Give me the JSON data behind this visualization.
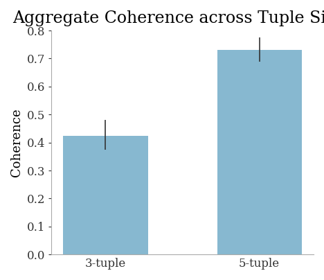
{
  "categories": [
    "3-tuple",
    "5-tuple"
  ],
  "values": [
    0.425,
    0.73
  ],
  "errors_upper": [
    0.055,
    0.045
  ],
  "errors_lower": [
    0.05,
    0.04
  ],
  "bar_color": "#87b8d0",
  "title": "Aggregate Coherence across Tuple Sizes",
  "ylabel": "Coherence",
  "ylim": [
    0.0,
    0.8
  ],
  "yticks": [
    0.0,
    0.1,
    0.2,
    0.3,
    0.4,
    0.5,
    0.6,
    0.7,
    0.8
  ],
  "title_fontsize": 17,
  "label_fontsize": 13,
  "tick_fontsize": 12,
  "bar_width": 0.55,
  "error_capsize": 0,
  "error_color": "#333333",
  "error_linewidth": 1.2,
  "bg_color": "#ffffff",
  "plot_bg_color": "#ffffff"
}
